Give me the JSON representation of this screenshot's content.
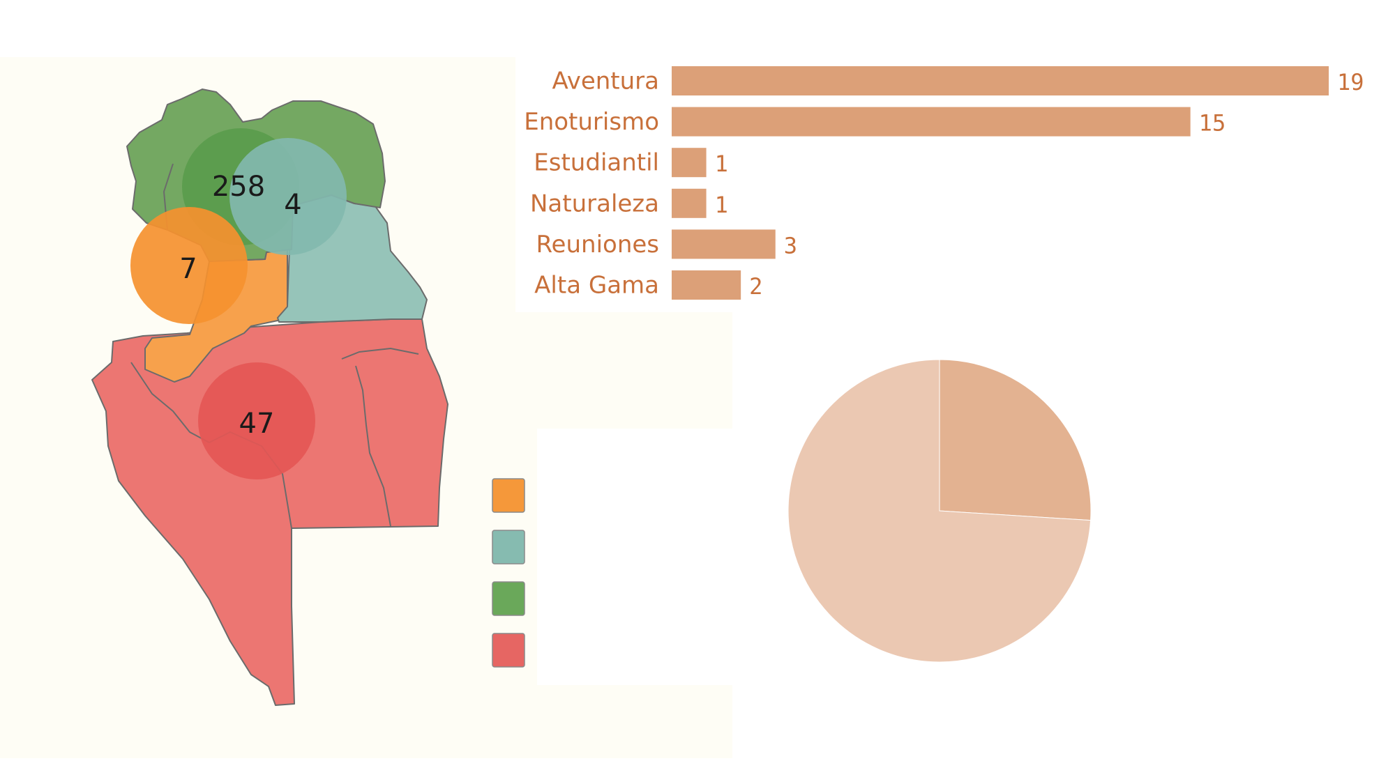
{
  "chart_data": [
    {
      "type": "bubble-map",
      "region_colors": [
        "#f7a14c",
        "#96c4b9",
        "#74a862",
        "#ec7672"
      ],
      "bubbles": [
        {
          "label": "258",
          "value": 258,
          "color": "#5a9c4c"
        },
        {
          "label": "4",
          "value": 4,
          "color": "#82b8ae"
        },
        {
          "label": "7",
          "value": 7,
          "color": "#f5912f"
        },
        {
          "label": "47",
          "value": 47,
          "color": "#e45755"
        }
      ],
      "legend": {
        "swatches": [
          "#f5983a",
          "#86bbb0",
          "#6aa85a",
          "#e66663"
        ]
      }
    },
    {
      "type": "bar",
      "orientation": "horizontal",
      "categories": [
        "Aventura",
        "Enoturismo",
        "Estudiantil",
        "Naturaleza",
        "Reuniones",
        "Alta Gama"
      ],
      "values": [
        19,
        15,
        1,
        1,
        3,
        2
      ],
      "xlim": [
        0,
        19
      ],
      "bar_color": "#dca078",
      "label_color": "#c8703a"
    },
    {
      "type": "pie",
      "slices": [
        {
          "value": 0.26,
          "color": "#e3b291"
        },
        {
          "value": 0.74,
          "color": "#ebc8b2"
        }
      ]
    }
  ]
}
